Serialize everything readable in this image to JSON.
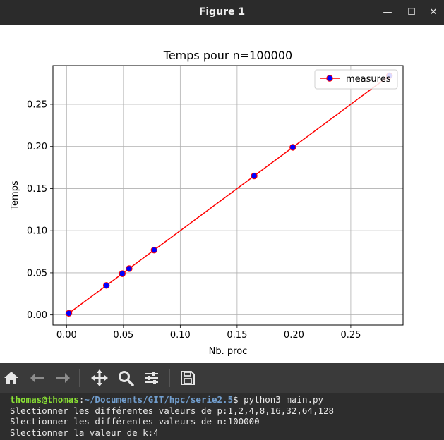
{
  "window": {
    "title": "Figure 1",
    "minimize_glyph": "—",
    "maximize_glyph": "☐",
    "close_glyph": "✕"
  },
  "toolbar": {
    "icons": [
      "home-icon",
      "back-icon",
      "forward-icon",
      "pan-icon",
      "zoom-icon",
      "configure-subplots-icon",
      "save-icon"
    ],
    "icon_color": "#e6e6e6",
    "disabled_icon_color": "#8c8c8c"
  },
  "chart_data": {
    "type": "line",
    "title": "Temps pour n=100000",
    "xlabel": "Nb. proc",
    "ylabel": "Temps",
    "xlim": [
      -0.012,
      0.296
    ],
    "ylim": [
      -0.012,
      0.296
    ],
    "x_ticks": [
      0.0,
      0.05,
      0.1,
      0.15,
      0.2,
      0.25
    ],
    "x_tick_labels": [
      "0.00",
      "0.05",
      "0.10",
      "0.15",
      "0.20",
      "0.25"
    ],
    "y_ticks": [
      0.0,
      0.05,
      0.1,
      0.15,
      0.2,
      0.25
    ],
    "y_tick_labels": [
      "0.00",
      "0.05",
      "0.10",
      "0.15",
      "0.20",
      "0.25"
    ],
    "grid": true,
    "legend_position": "top-right",
    "series": [
      {
        "name": "measures",
        "line_color": "#ff0000",
        "marker_color": "#0000ff",
        "x": [
          0.002,
          0.035,
          0.049,
          0.055,
          0.077,
          0.165,
          0.199,
          0.284
        ],
        "y": [
          0.002,
          0.035,
          0.049,
          0.055,
          0.077,
          0.165,
          0.199,
          0.284
        ]
      }
    ]
  },
  "terminal": {
    "user_host": "thomas@thomas",
    "path": "~/Documents/GIT/hpc/serie2.5",
    "prompt_suffix": "$ ",
    "command": "python3 main.py",
    "output_lines": [
      "Slectionner les différentes valeurs de p:1,2,4,8,16,32,64,128",
      "Slectionner les différentes valeurs de n:100000",
      "Slectionner la valeur de k:4"
    ]
  }
}
